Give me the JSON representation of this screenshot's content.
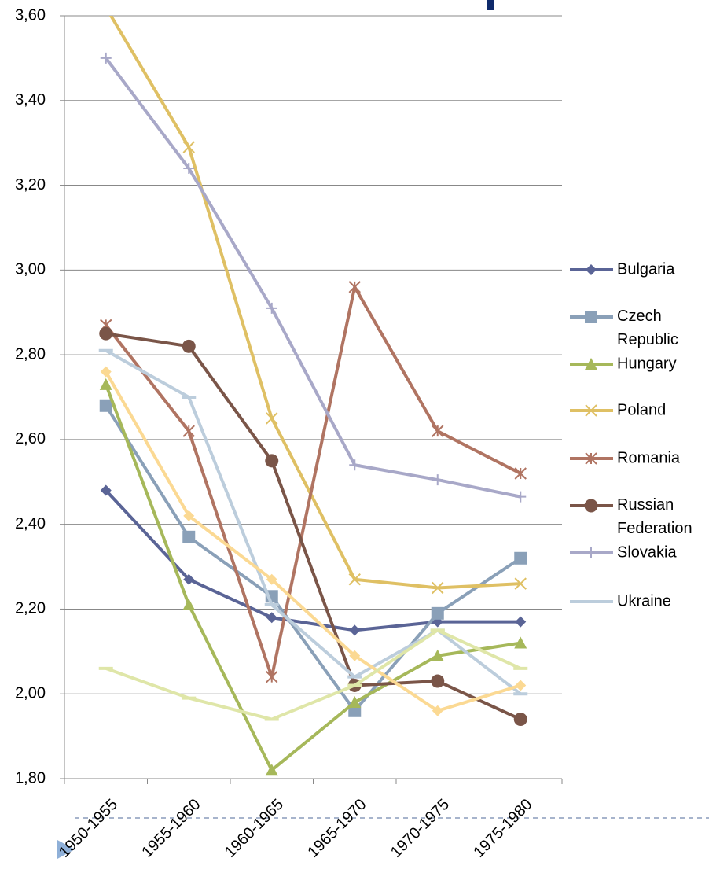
{
  "chart_data": {
    "type": "line",
    "categories": [
      "1950-1955",
      "1955-1960",
      "1960-1965",
      "1965-1970",
      "1970-1975",
      "1975-1980"
    ],
    "ylim": [
      1.8,
      3.6
    ],
    "yticks": [
      {
        "value": 1.8,
        "label": "1,80"
      },
      {
        "value": 2.0,
        "label": "2,00"
      },
      {
        "value": 2.2,
        "label": "2,20"
      },
      {
        "value": 2.4,
        "label": "2,40"
      },
      {
        "value": 2.6,
        "label": "2,60"
      },
      {
        "value": 2.8,
        "label": "2,80"
      },
      {
        "value": 3.0,
        "label": "3,00"
      },
      {
        "value": 3.2,
        "label": "3,20"
      },
      {
        "value": 3.4,
        "label": "3,40"
      },
      {
        "value": 3.6,
        "label": "3,60"
      }
    ],
    "grid": true,
    "legend": "right",
    "series": [
      {
        "name": "Bulgaria",
        "color": "#5a6496",
        "marker": "diamond",
        "values": [
          2.48,
          2.27,
          2.18,
          2.15,
          2.17,
          2.17
        ]
      },
      {
        "name": "Czech Republic",
        "color": "#8aa0b8",
        "marker": "square",
        "values": [
          2.68,
          2.37,
          2.23,
          1.96,
          2.19,
          2.32
        ]
      },
      {
        "name": "Hungary",
        "color": "#a6b85a",
        "marker": "triangle",
        "values": [
          2.73,
          2.21,
          1.82,
          1.98,
          2.09,
          2.12
        ]
      },
      {
        "name": "Poland",
        "color": "#dfc064",
        "marker": "x",
        "values": [
          3.62,
          3.29,
          2.65,
          2.27,
          2.25,
          2.26
        ]
      },
      {
        "name": "Romania",
        "color": "#b07462",
        "marker": "star",
        "values": [
          2.87,
          2.62,
          2.04,
          2.96,
          2.62,
          2.52
        ]
      },
      {
        "name": "Russian Federation",
        "color": "#7a5548",
        "marker": "circle",
        "values": [
          2.85,
          2.82,
          2.55,
          2.02,
          2.03,
          1.94
        ]
      },
      {
        "name": "Slovakia",
        "color": "#a8a8c8",
        "marker": "plus",
        "values": [
          3.5,
          3.24,
          2.91,
          2.54,
          2.505,
          2.465
        ]
      },
      {
        "name": "Ukraine",
        "color": "#bccddc",
        "marker": "dash",
        "values": [
          2.81,
          2.7,
          2.21,
          2.04,
          2.15,
          2.0
        ]
      },
      {
        "color": "#fbd993",
        "marker": "diamond",
        "values": [
          2.76,
          2.42,
          2.27,
          2.09,
          1.96,
          2.02
        ]
      },
      {
        "color": "#dfe6a8",
        "marker": "dash",
        "values": [
          2.06,
          1.99,
          1.94,
          2.02,
          2.15,
          2.06
        ]
      }
    ]
  }
}
